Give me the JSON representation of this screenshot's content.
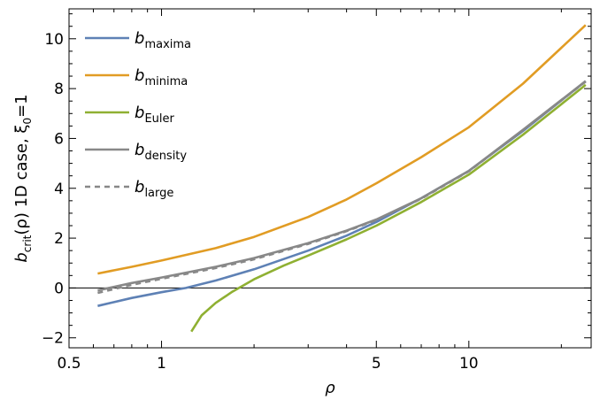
{
  "chart_data": {
    "type": "line",
    "xscale": "log",
    "xlim": [
      0.5,
      25
    ],
    "ylim": [
      -2.4,
      11.2
    ],
    "xlabel": "ρ",
    "ylabel": {
      "main": "b",
      "sub": "crit",
      "rest": "(ρ) 1D case, ξ",
      "sub2": "0",
      "tail": "=1"
    },
    "x_ticks": [
      {
        "value": 0.5,
        "label": "0.5"
      },
      {
        "value": 1,
        "label": "1"
      },
      {
        "value": 5,
        "label": "5"
      },
      {
        "value": 10,
        "label": "10"
      }
    ],
    "x_minor_ticks": [
      0.6,
      0.7,
      0.8,
      0.9,
      2,
      3,
      4,
      6,
      7,
      8,
      9,
      20
    ],
    "y_ticks": [
      {
        "value": -2,
        "label": "−2"
      },
      {
        "value": 0,
        "label": "0"
      },
      {
        "value": 2,
        "label": "2"
      },
      {
        "value": 4,
        "label": "4"
      },
      {
        "value": 6,
        "label": "6"
      },
      {
        "value": 8,
        "label": "8"
      },
      {
        "value": 10,
        "label": "10"
      }
    ],
    "y_minor_step": 0.5,
    "zero_line": true,
    "legend_position": "top-left",
    "series": [
      {
        "name": "b",
        "sub": "maxima",
        "color": "#5e81b5",
        "dash": "none",
        "points": [
          [
            0.62,
            -0.72
          ],
          [
            0.8,
            -0.4
          ],
          [
            1,
            -0.17
          ],
          [
            1.2,
            0
          ],
          [
            1.5,
            0.3
          ],
          [
            2,
            0.75
          ],
          [
            3,
            1.5
          ],
          [
            4,
            2.1
          ],
          [
            5,
            2.65
          ],
          [
            7,
            3.6
          ],
          [
            10,
            4.7
          ],
          [
            15,
            6.3
          ],
          [
            24,
            8.3
          ]
        ]
      },
      {
        "name": "b",
        "sub": "minima",
        "color": "#e19c24",
        "dash": "none",
        "points": [
          [
            0.62,
            0.58
          ],
          [
            0.8,
            0.85
          ],
          [
            1,
            1.1
          ],
          [
            1.5,
            1.6
          ],
          [
            2,
            2.05
          ],
          [
            3,
            2.85
          ],
          [
            4,
            3.55
          ],
          [
            5,
            4.2
          ],
          [
            7,
            5.25
          ],
          [
            10,
            6.45
          ],
          [
            15,
            8.2
          ],
          [
            24,
            10.55
          ]
        ]
      },
      {
        "name": "b",
        "sub": "Euler",
        "color": "#8fb032",
        "dash": "none",
        "points": [
          [
            1.25,
            -1.75
          ],
          [
            1.35,
            -1.1
          ],
          [
            1.5,
            -0.6
          ],
          [
            1.7,
            -0.15
          ],
          [
            2,
            0.35
          ],
          [
            2.5,
            0.9
          ],
          [
            3,
            1.3
          ],
          [
            4,
            1.95
          ],
          [
            5,
            2.5
          ],
          [
            7,
            3.45
          ],
          [
            10,
            4.55
          ],
          [
            15,
            6.15
          ],
          [
            24,
            8.15
          ]
        ]
      },
      {
        "name": "b",
        "sub": "density",
        "color": "#888888",
        "dash": "none",
        "points": [
          [
            0.62,
            -0.1
          ],
          [
            0.8,
            0.2
          ],
          [
            1,
            0.42
          ],
          [
            1.5,
            0.85
          ],
          [
            2,
            1.2
          ],
          [
            3,
            1.8
          ],
          [
            4,
            2.3
          ],
          [
            5,
            2.75
          ],
          [
            7,
            3.6
          ],
          [
            10,
            4.7
          ],
          [
            15,
            6.35
          ],
          [
            24,
            8.3
          ]
        ]
      },
      {
        "name": "b",
        "sub": "large",
        "color": "#888888",
        "dash": "6,5",
        "points": [
          [
            0.62,
            -0.2
          ],
          [
            0.8,
            0.13
          ],
          [
            1,
            0.37
          ],
          [
            1.5,
            0.8
          ],
          [
            2,
            1.15
          ],
          [
            3,
            1.77
          ],
          [
            4,
            2.28
          ],
          [
            5,
            2.73
          ],
          [
            7,
            3.58
          ],
          [
            10,
            4.68
          ],
          [
            15,
            6.33
          ],
          [
            24,
            8.28
          ]
        ]
      }
    ]
  }
}
